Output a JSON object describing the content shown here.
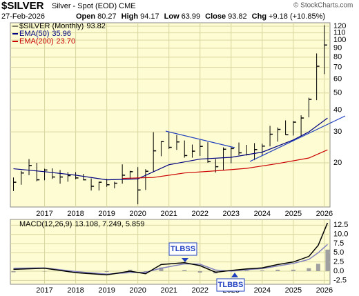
{
  "chart_data": [
    {
      "type": "ohlc",
      "title": "$SILVER",
      "subtitle": "Silver - Spot (EOD) CME",
      "date": "27-Feb-2026",
      "quote": [
        {
          "label": "Open",
          "value": 80.27
        },
        {
          "label": "High",
          "value": 94.17
        },
        {
          "label": "Low",
          "value": 63.99
        },
        {
          "label": "Close",
          "value": 93.82
        },
        {
          "label": "Chg",
          "value": "+9.18 (+10.85%)"
        }
      ],
      "credit": "© StockCharts.com",
      "log_scale": true,
      "xlim": [
        2015.9,
        2026.18
      ],
      "xticks": [
        {
          "value": 2017,
          "label": "2017"
        },
        {
          "value": 2018,
          "label": "2018"
        },
        {
          "value": 2019,
          "label": "2019"
        },
        {
          "value": 2020,
          "label": "2020"
        },
        {
          "value": 2021,
          "label": "2021"
        },
        {
          "value": 2022,
          "label": "2022"
        },
        {
          "value": 2023,
          "label": "2023"
        },
        {
          "value": 2024,
          "label": "2024"
        },
        {
          "value": 2025,
          "label": "2025"
        },
        {
          "value": 2026,
          "label": "2026"
        }
      ],
      "ylim": [
        11.2,
        125.6
      ],
      "yticks": [
        20,
        30,
        40,
        50,
        60,
        70,
        80,
        90,
        100,
        110,
        120
      ],
      "x": [
        2016.0,
        2016.25,
        2016.5,
        2016.75,
        2017.0,
        2017.25,
        2017.5,
        2017.75,
        2018.0,
        2018.25,
        2018.5,
        2018.75,
        2019.0,
        2019.25,
        2019.5,
        2019.75,
        2020.0,
        2020.25,
        2020.5,
        2020.75,
        2021.0,
        2021.25,
        2021.5,
        2021.75,
        2022.0,
        2022.25,
        2022.5,
        2022.75,
        2023.0,
        2023.25,
        2023.5,
        2023.75,
        2024.0,
        2024.25,
        2024.5,
        2024.75,
        2025.0,
        2025.25,
        2025.5,
        2025.75,
        2026.0
      ],
      "high": [
        16.5,
        18,
        21,
        20,
        18.5,
        18.6,
        18.2,
        17.7,
        17.7,
        17.3,
        16.3,
        15.6,
        16.2,
        15.6,
        19.6,
        18,
        18.9,
        18.4,
        29.9,
        26.5,
        30.1,
        28.8,
        26.8,
        25.4,
        27.0,
        26.2,
        21,
        24.5,
        24.6,
        26.1,
        25.3,
        25.9,
        25.7,
        32.5,
        31.8,
        34.9,
        34.6,
        37.3,
        47.0,
        84.0,
        121.6
      ],
      "low": [
        13.8,
        15,
        17,
        15.7,
        15.9,
        16.2,
        15.2,
        15.6,
        16.1,
        15.9,
        13.9,
        13.9,
        14.6,
        14.3,
        15.2,
        16.2,
        11.6,
        14,
        17.8,
        21.8,
        24.0,
        23.7,
        21.4,
        21.4,
        21.9,
        20.0,
        17.6,
        18.1,
        19.9,
        22.1,
        22.0,
        20.7,
        21.9,
        24.8,
        26.4,
        28.8,
        28.6,
        28.3,
        36.3,
        45.5,
        64
      ],
      "close": [
        15.5,
        17.5,
        19.3,
        16,
        18.2,
        16.6,
        16.6,
        16.9,
        16.4,
        16,
        14.7,
        15.5,
        15,
        15.3,
        17,
        17.8,
        14,
        17.9,
        23.4,
        26.4,
        24.5,
        26.3,
        22.0,
        23.3,
        24.8,
        20.3,
        19,
        23.9,
        24.1,
        22.8,
        22.3,
        23.8,
        24.9,
        29.1,
        31.0,
        28.9,
        34.1,
        36.0,
        46.0,
        71.0,
        93.8
      ],
      "series": [
        {
          "name": "EMA(50)",
          "last": "35.96",
          "color": "#000080",
          "x": [
            2016.0,
            2017.0,
            2018.0,
            2019.0,
            2020.0,
            2021.0,
            2022.0,
            2023.0,
            2024.0,
            2025.0,
            2025.5,
            2026.1
          ],
          "values": [
            18.5,
            17.8,
            17,
            16,
            16.2,
            19.5,
            21,
            21.5,
            23,
            27,
            30,
            35.96
          ]
        },
        {
          "name": "EMA(200)",
          "last": "23.70",
          "color": "#cc0000",
          "x": [
            2019.5,
            2020.5,
            2021.5,
            2022.5,
            2023.5,
            2024.5,
            2025.5,
            2026.1
          ],
          "values": [
            16.3,
            16.5,
            17.5,
            18,
            18.6,
            19.8,
            21.3,
            23.7
          ]
        }
      ],
      "price_name": "$SILVER (Monthly)",
      "price_last": 93.82,
      "grid": true
    },
    {
      "type": "macd",
      "name": "MACD(12,26,9)",
      "last": "13.108, 7.249, 5.859",
      "xlim": [
        2015.9,
        2026.18
      ],
      "ylim": [
        -3.56,
        14.06
      ],
      "yticks": [
        {
          "value": 12.5,
          "label": "12.5"
        },
        {
          "value": 10,
          "label": "10.0"
        },
        {
          "value": 7.5,
          "label": "7.5"
        },
        {
          "value": 5,
          "label": "5.0"
        },
        {
          "value": 2.5,
          "label": "2.5"
        },
        {
          "value": 0,
          "label": "0.0"
        },
        {
          "value": -2.5,
          "label": "-2.5"
        }
      ],
      "x": [
        2016.0,
        2017.0,
        2018.0,
        2019.0,
        2019.75,
        2020.25,
        2020.75,
        2021.5,
        2022.0,
        2022.5,
        2023.0,
        2023.5,
        2024.0,
        2024.5,
        2025.0,
        2025.5,
        2025.8,
        2026.1
      ],
      "series": [
        {
          "name": "MACD",
          "color": "#000000",
          "values": [
            0.5,
            0.8,
            -0.4,
            -1,
            0,
            -0.7,
            1.8,
            2.3,
            1.5,
            -0.3,
            0.2,
            0.6,
            0.9,
            1.8,
            2.5,
            4,
            7,
            13.108
          ]
        },
        {
          "name": "Signal",
          "color": "#8080c0",
          "values": [
            0.8,
            0.9,
            -0.1,
            -0.8,
            -0.4,
            -0.3,
            0.8,
            2.0,
            1.9,
            0.3,
            0.0,
            0.4,
            0.7,
            1.4,
            2.1,
            3.2,
            5.0,
            7.249
          ]
        },
        {
          "name": "Histogram",
          "color": "#a0a0a0",
          "values": [
            -0.3,
            -0.1,
            -0.3,
            -0.2,
            0.4,
            -0.4,
            1.0,
            0.3,
            -0.4,
            -0.6,
            0.2,
            0.2,
            0.2,
            0.4,
            0.4,
            0.8,
            2.0,
            5.859
          ]
        }
      ],
      "annotations": [
        "TLBSS",
        "TLBBS"
      ],
      "grid": true
    }
  ]
}
